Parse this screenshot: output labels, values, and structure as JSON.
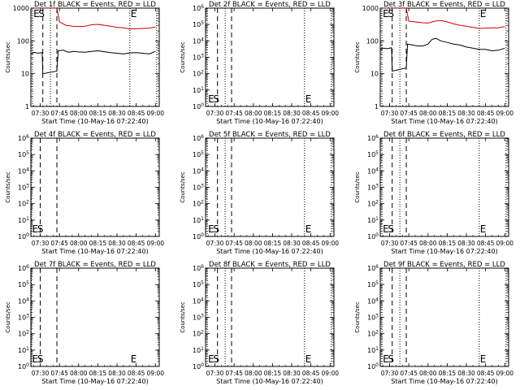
{
  "figure": {
    "xlabel": "Start Time (10-May-16 07:22:40)",
    "ylabel": "Counts/sec",
    "x_ticks": [
      "07:30",
      "07:45",
      "08:00",
      "08:15",
      "08:30",
      "08:45",
      "09:00"
    ]
  },
  "colors": {
    "events": "#000000",
    "lld": "#cc0000"
  },
  "chart_data": [
    {
      "type": "line",
      "title": "Det 1f BLACK = Events, RED = LLD",
      "xlim": [
        "07:22:40",
        "09:03:00"
      ],
      "ylim": [
        1,
        1000
      ],
      "yscale": "log",
      "y_ticks": [
        "1",
        "10",
        "100",
        "1000"
      ],
      "dashed_lines": [
        "07:32",
        "07:43"
      ],
      "dotted_lines": [
        "07:24",
        "07:38",
        "08:40",
        "09:01"
      ],
      "markers": [
        {
          "text": "E",
          "x": "07:24"
        },
        {
          "text": "S",
          "x": "07:28"
        },
        {
          "text": "E",
          "x": "08:40"
        }
      ],
      "series": [
        {
          "color": "#cc0000",
          "x": [
            "07:22:40",
            "07:31:30",
            "07:32:10",
            "07:36",
            "07:40",
            "07:43",
            "07:45",
            "07:50",
            "07:55",
            "08:00",
            "08:05",
            "08:10",
            "08:15",
            "08:20",
            "08:25",
            "08:30",
            "08:35",
            "08:40",
            "08:45",
            "08:50",
            "08:55",
            "09:00"
          ],
          "y": [
            1000,
            1000,
            1000,
            1000,
            1000,
            1000,
            380,
            300,
            280,
            275,
            280,
            310,
            320,
            300,
            280,
            260,
            250,
            230,
            235,
            240,
            245,
            265
          ]
        },
        {
          "color": "#000000",
          "x": [
            "07:23",
            "07:25",
            "07:28",
            "07:31:30",
            "07:32",
            "07:43",
            "07:44",
            "07:48",
            "07:52",
            "07:56",
            "08:00",
            "08:05",
            "08:10",
            "08:15",
            "08:20",
            "08:25",
            "08:30",
            "08:35",
            "08:40",
            "08:45",
            "08:50",
            "08:55",
            "09:00"
          ],
          "y": [
            40,
            45,
            42,
            44,
            10,
            12,
            50,
            52,
            45,
            48,
            46,
            45,
            48,
            50,
            47,
            44,
            42,
            40,
            43,
            44,
            42,
            40,
            48
          ]
        }
      ]
    },
    {
      "type": "line",
      "title": "Det 2f BLACK = Events, RED = LLD",
      "xlim": [
        "07:22:40",
        "09:03:00"
      ],
      "ylim": [
        1,
        1000000
      ],
      "yscale": "log",
      "y_ticks": [
        "10^0",
        "10^1",
        "10^2",
        "10^3",
        "10^4",
        "10^5",
        "10^6"
      ],
      "dashed_lines": [
        "07:32",
        "07:43"
      ],
      "dotted_lines": [
        "07:24",
        "07:38",
        "08:40",
        "09:01"
      ],
      "markers": [
        {
          "text": "E",
          "x": "07:24"
        },
        {
          "text": "S",
          "x": "07:28"
        },
        {
          "text": "E",
          "x": "08:40"
        }
      ],
      "series": []
    },
    {
      "type": "line",
      "title": "Det 3f BLACK = Events, RED = LLD",
      "xlim": [
        "07:22:40",
        "09:03:00"
      ],
      "ylim": [
        1,
        1000
      ],
      "yscale": "log",
      "y_ticks": [
        "1",
        "10",
        "100",
        "1000"
      ],
      "dashed_lines": [
        "07:32",
        "07:43"
      ],
      "dotted_lines": [
        "07:24",
        "07:38",
        "08:40",
        "09:01"
      ],
      "markers": [
        {
          "text": "E",
          "x": "07:24"
        },
        {
          "text": "S",
          "x": "07:28"
        },
        {
          "text": "E",
          "x": "08:40"
        }
      ],
      "series": [
        {
          "color": "#cc0000",
          "x": [
            "07:22:40",
            "07:31:30",
            "07:32:10",
            "07:36",
            "07:40",
            "07:43",
            "07:45",
            "07:50",
            "07:55",
            "08:00",
            "08:05",
            "08:10",
            "08:15",
            "08:20",
            "08:25",
            "08:30",
            "08:35",
            "08:40",
            "08:45",
            "08:50",
            "08:55",
            "09:00"
          ],
          "y": [
            1000,
            1000,
            1000,
            1000,
            1000,
            1000,
            400,
            380,
            360,
            350,
            400,
            420,
            380,
            330,
            300,
            280,
            260,
            240,
            245,
            250,
            250,
            275
          ]
        },
        {
          "color": "#000000",
          "x": [
            "07:23",
            "07:25",
            "07:28",
            "07:31:30",
            "07:32",
            "07:43",
            "07:44",
            "07:48",
            "07:52",
            "07:56",
            "08:00",
            "08:03",
            "08:06",
            "08:10",
            "08:15",
            "08:20",
            "08:25",
            "08:30",
            "08:35",
            "08:40",
            "08:45",
            "08:50",
            "08:55",
            "09:00"
          ],
          "y": [
            55,
            60,
            58,
            62,
            12,
            15,
            80,
            75,
            70,
            70,
            80,
            110,
            120,
            100,
            90,
            80,
            75,
            65,
            60,
            55,
            55,
            50,
            52,
            60
          ]
        }
      ]
    },
    {
      "type": "line",
      "title": "Det 4f BLACK = Events, RED = LLD",
      "xlim": [
        "07:22:40",
        "09:03:00"
      ],
      "ylim": [
        1,
        1000000
      ],
      "yscale": "log",
      "y_ticks": [
        "10^0",
        "10^1",
        "10^2",
        "10^3",
        "10^4",
        "10^5",
        "10^6"
      ],
      "dashed_lines": [
        "07:30",
        "07:43"
      ],
      "dotted_lines": [
        "07:23"
      ],
      "markers": [
        {
          "text": "E",
          "x": "07:23"
        },
        {
          "text": "S",
          "x": "07:27"
        }
      ],
      "series": []
    },
    {
      "type": "line",
      "title": "Det 5f BLACK = Events, RED = LLD",
      "xlim": [
        "07:22:40",
        "09:03:00"
      ],
      "ylim": [
        1,
        1000000
      ],
      "yscale": "log",
      "y_ticks": [
        "10^0",
        "10^1",
        "10^2",
        "10^3",
        "10^4",
        "10^5",
        "10^6"
      ],
      "dashed_lines": [
        "07:32",
        "07:43"
      ],
      "dotted_lines": [
        "07:24",
        "07:38",
        "08:40",
        "09:01"
      ],
      "markers": [
        {
          "text": "E",
          "x": "07:24"
        },
        {
          "text": "S",
          "x": "07:28"
        },
        {
          "text": "E",
          "x": "08:40"
        }
      ],
      "series": []
    },
    {
      "type": "line",
      "title": "Det 6f BLACK = Events, RED = LLD",
      "xlim": [
        "07:22:40",
        "09:03:00"
      ],
      "ylim": [
        1,
        1000000
      ],
      "yscale": "log",
      "y_ticks": [
        "10^0",
        "10^1",
        "10^2",
        "10^3",
        "10^4",
        "10^5",
        "10^6"
      ],
      "dashed_lines": [
        "07:32",
        "07:43"
      ],
      "dotted_lines": [
        "07:24",
        "07:38",
        "08:40",
        "09:01"
      ],
      "markers": [
        {
          "text": "E",
          "x": "07:24"
        },
        {
          "text": "S",
          "x": "07:28"
        },
        {
          "text": "E",
          "x": "08:40"
        }
      ],
      "series": []
    },
    {
      "type": "line",
      "title": "Det 7f BLACK = Events, RED = LLD",
      "xlim": [
        "07:22:40",
        "09:03:00"
      ],
      "ylim": [
        1,
        1000000
      ],
      "yscale": "log",
      "y_ticks": [
        "10^0",
        "10^1",
        "10^2",
        "10^3",
        "10^4",
        "10^5",
        "10^6"
      ],
      "dashed_lines": [
        "07:30",
        "07:43"
      ],
      "dotted_lines": [
        "07:23"
      ],
      "markers": [
        {
          "text": "E",
          "x": "07:23"
        },
        {
          "text": "S",
          "x": "07:27"
        },
        {
          "text": "E",
          "x": "08:40"
        }
      ],
      "series": []
    },
    {
      "type": "line",
      "title": "Det 8f BLACK = Events, RED = LLD",
      "xlim": [
        "07:22:40",
        "09:03:00"
      ],
      "ylim": [
        1,
        1000000
      ],
      "yscale": "log",
      "y_ticks": [
        "10^0",
        "10^1",
        "10^2",
        "10^3",
        "10^4",
        "10^5",
        "10^6"
      ],
      "dashed_lines": [
        "07:32",
        "07:43"
      ],
      "dotted_lines": [
        "07:24",
        "07:38",
        "08:40",
        "09:01"
      ],
      "markers": [
        {
          "text": "E",
          "x": "07:24"
        },
        {
          "text": "S",
          "x": "07:28"
        },
        {
          "text": "E",
          "x": "08:40"
        }
      ],
      "series": []
    },
    {
      "type": "line",
      "title": "Det 9f BLACK = Events, RED = LLD",
      "xlim": [
        "07:22:40",
        "09:03:00"
      ],
      "ylim": [
        1,
        1000000
      ],
      "yscale": "log",
      "y_ticks": [
        "10^0",
        "10^1",
        "10^2",
        "10^3",
        "10^4",
        "10^5",
        "10^6"
      ],
      "dashed_lines": [
        "07:32",
        "07:43"
      ],
      "dotted_lines": [
        "07:24",
        "07:38",
        "08:40",
        "09:01"
      ],
      "markers": [
        {
          "text": "E",
          "x": "07:24"
        },
        {
          "text": "S",
          "x": "07:28"
        },
        {
          "text": "E",
          "x": "08:40"
        }
      ],
      "series": []
    }
  ]
}
